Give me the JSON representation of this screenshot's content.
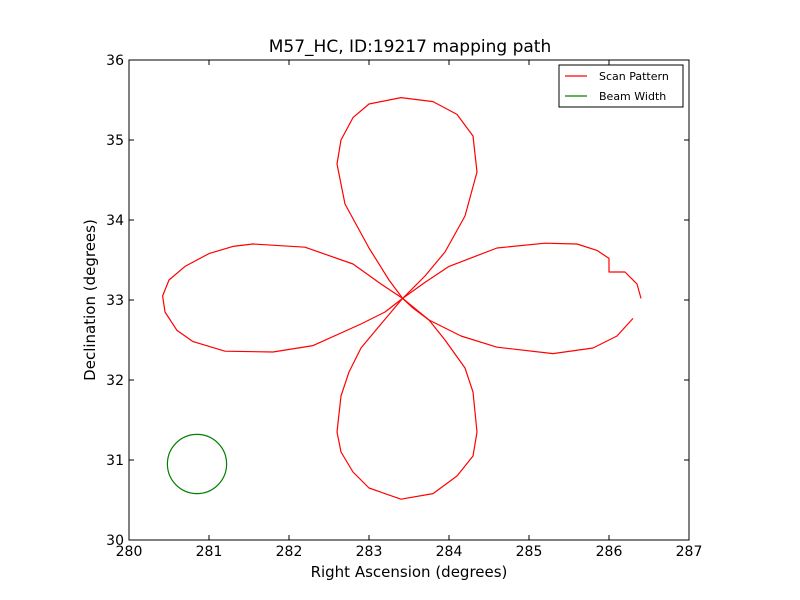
{
  "chart_data": {
    "type": "line",
    "title": "M57_HC, ID:19217 mapping path",
    "xlabel": "Right Ascension (degrees)",
    "ylabel": "Declination (degrees)",
    "xlim": [
      280,
      287
    ],
    "ylim": [
      30,
      36
    ],
    "xticks": [
      "280",
      "281",
      "282",
      "283",
      "284",
      "285",
      "286",
      "287"
    ],
    "yticks": [
      "30",
      "31",
      "32",
      "33",
      "34",
      "35",
      "36"
    ],
    "grid": false,
    "legend_position": "top-right",
    "series": [
      {
        "name": "Scan Pattern",
        "color": "#ff0000",
        "points": [
          [
            281.55,
            33.71
          ],
          [
            281.55,
            33.7
          ],
          [
            282.2,
            33.66
          ],
          [
            282.8,
            33.45
          ],
          [
            283.15,
            33.2
          ],
          [
            283.42,
            33.02
          ],
          [
            283.55,
            32.9
          ],
          [
            283.75,
            32.75
          ],
          [
            284.15,
            32.55
          ],
          [
            284.6,
            32.41
          ],
          [
            285.3,
            32.33
          ],
          [
            285.8,
            32.4
          ],
          [
            286.1,
            32.55
          ],
          [
            286.3,
            32.77
          ]
        ]
      },
      {
        "name": "",
        "color": "#ff0000",
        "points": [
          [
            286.4,
            33.02
          ],
          [
            286.35,
            33.2
          ],
          [
            286.2,
            33.35
          ],
          [
            286.0,
            33.35
          ],
          [
            286.0,
            33.52
          ],
          [
            285.85,
            33.62
          ],
          [
            285.6,
            33.7
          ],
          [
            285.2,
            33.71
          ],
          [
            284.6,
            33.65
          ],
          [
            284.0,
            33.42
          ],
          [
            283.7,
            33.22
          ],
          [
            283.42,
            33.02
          ],
          [
            283.2,
            32.85
          ],
          [
            282.9,
            32.7
          ],
          [
            282.3,
            32.43
          ],
          [
            281.8,
            32.35
          ],
          [
            281.2,
            32.36
          ],
          [
            280.8,
            32.48
          ],
          [
            280.6,
            32.62
          ],
          [
            280.45,
            32.85
          ],
          [
            280.42,
            33.05
          ],
          [
            280.5,
            33.25
          ],
          [
            280.7,
            33.42
          ],
          [
            281.0,
            33.58
          ],
          [
            281.3,
            33.67
          ],
          [
            281.55,
            33.7
          ]
        ]
      },
      {
        "name": "",
        "color": "#ff0000",
        "points": [
          [
            283.42,
            33.02
          ],
          [
            283.25,
            33.25
          ],
          [
            283.0,
            33.65
          ],
          [
            282.7,
            34.2
          ],
          [
            282.6,
            34.7
          ],
          [
            282.65,
            35.0
          ],
          [
            282.8,
            35.28
          ],
          [
            283.0,
            35.45
          ],
          [
            283.4,
            35.53
          ],
          [
            283.8,
            35.48
          ],
          [
            284.1,
            35.32
          ],
          [
            284.3,
            35.05
          ],
          [
            284.35,
            34.6
          ],
          [
            284.2,
            34.05
          ],
          [
            283.95,
            33.6
          ],
          [
            283.7,
            33.3
          ],
          [
            283.42,
            33.02
          ],
          [
            283.15,
            32.7
          ],
          [
            282.9,
            32.4
          ],
          [
            282.75,
            32.1
          ],
          [
            282.65,
            31.8
          ],
          [
            282.6,
            31.35
          ],
          [
            282.65,
            31.1
          ],
          [
            282.8,
            30.85
          ],
          [
            283.0,
            30.65
          ],
          [
            283.4,
            30.51
          ],
          [
            283.8,
            30.58
          ],
          [
            284.1,
            30.8
          ],
          [
            284.3,
            31.05
          ],
          [
            284.35,
            31.35
          ],
          [
            284.3,
            31.85
          ],
          [
            284.2,
            32.15
          ],
          [
            283.95,
            32.5
          ],
          [
            283.75,
            32.75
          ],
          [
            283.42,
            33.02
          ]
        ]
      },
      {
        "name": "Beam Width",
        "color": "#008000",
        "circle": {
          "center": [
            280.85,
            30.95
          ],
          "radius_deg": 0.37
        }
      }
    ]
  }
}
